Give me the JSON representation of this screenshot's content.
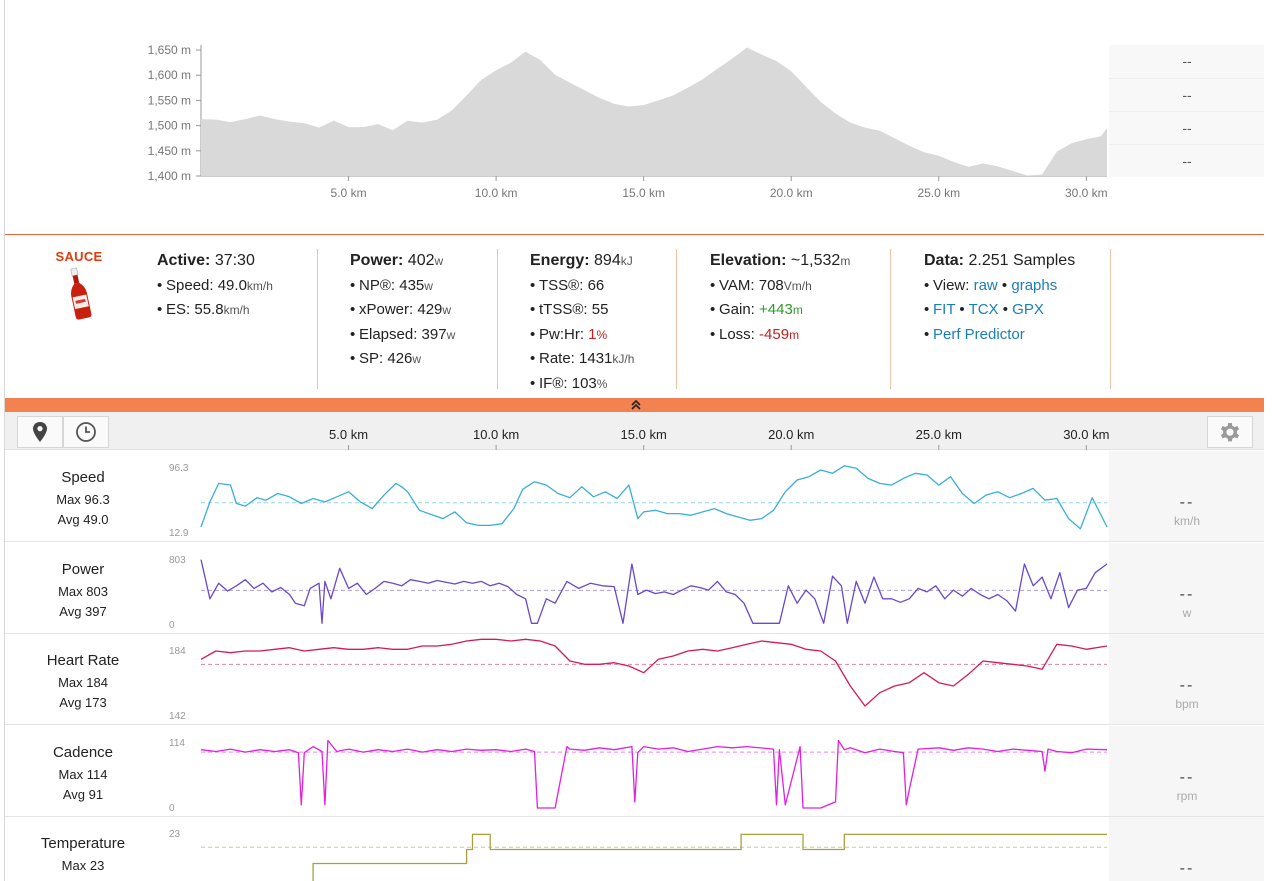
{
  "elevation": {
    "y_ticks": [
      "1,650 m",
      "1,600 m",
      "1,550 m",
      "1,500 m",
      "1,450 m",
      "1,400 m"
    ],
    "x_ticks": [
      "5.0 km",
      "10.0 km",
      "15.0 km",
      "20.0 km",
      "25.0 km",
      "30.0 km"
    ],
    "fill_color": "#d9d9d9",
    "side_values": [
      "--",
      "--",
      "--",
      "--"
    ]
  },
  "chart_data": {
    "type": "area",
    "xlabel": "",
    "ylabel": "",
    "x_unit": "km",
    "y_unit": "m",
    "xlim": [
      0,
      30.7
    ],
    "ylim": [
      1400,
      1660
    ],
    "x": [
      0,
      0.5,
      1,
      1.5,
      2,
      2.5,
      3,
      3.5,
      4,
      4.5,
      5,
      5.5,
      6,
      6.5,
      7,
      7.5,
      8,
      8.5,
      9,
      9.5,
      10,
      10.5,
      11,
      11.5,
      12,
      12.5,
      13,
      13.5,
      14,
      14.5,
      15,
      15.5,
      16,
      16.5,
      17,
      17.5,
      18,
      18.5,
      19,
      19.5,
      20,
      20.5,
      21,
      21.5,
      22,
      22.5,
      23,
      23.5,
      24,
      24.5,
      25,
      25.5,
      26,
      26.5,
      27,
      27.5,
      28,
      28.5,
      29,
      29.5,
      30,
      30.5,
      30.7
    ],
    "y": [
      1513,
      1512,
      1507,
      1513,
      1520,
      1513,
      1508,
      1505,
      1496,
      1510,
      1497,
      1497,
      1503,
      1491,
      1510,
      1506,
      1512,
      1530,
      1560,
      1591,
      1610,
      1625,
      1647,
      1630,
      1601,
      1585,
      1570,
      1555,
      1543,
      1538,
      1541,
      1550,
      1560,
      1575,
      1592,
      1613,
      1633,
      1655,
      1641,
      1628,
      1608,
      1577,
      1547,
      1524,
      1506,
      1496,
      1490,
      1475,
      1460,
      1447,
      1440,
      1428,
      1418,
      1425,
      1419,
      1410,
      1401,
      1403,
      1448,
      1465,
      1473,
      1479,
      1495
    ]
  },
  "stats": {
    "active": {
      "label": "Active:",
      "value": "37:30"
    },
    "speed": {
      "label": "Speed:",
      "value": "49.0",
      "unit": "km/h"
    },
    "es": {
      "label": "ES:",
      "value": "55.8",
      "unit": "km/h"
    },
    "power": {
      "label": "Power:",
      "value": "402",
      "unit": "w"
    },
    "np": {
      "label": "NP®:",
      "value": "435",
      "unit": "w"
    },
    "xpower": {
      "label": "xPower:",
      "value": "429",
      "unit": "w"
    },
    "elapsed": {
      "label": "Elapsed:",
      "value": "397",
      "unit": "w"
    },
    "sp": {
      "label": "SP:",
      "value": "426",
      "unit": "w"
    },
    "energy": {
      "label": "Energy:",
      "value": "894",
      "unit": "kJ"
    },
    "tss": {
      "label": "TSS®:",
      "value": "66"
    },
    "ttss": {
      "label": "tTSS®:",
      "value": "55"
    },
    "pwhr": {
      "label": "Pw:Hr:",
      "value": "1",
      "unit": "%"
    },
    "rate": {
      "label": "Rate:",
      "value": "1431",
      "unit": "kJ/h"
    },
    "if": {
      "label": "IF®:",
      "value": "103",
      "unit": "%"
    },
    "elevation": {
      "label": "Elevation:",
      "value": "~1,532",
      "unit": "m"
    },
    "vam": {
      "label": "VAM:",
      "value": "708",
      "unit": "Vm/h"
    },
    "gain": {
      "label": "Gain:",
      "value": "+443",
      "unit": "m"
    },
    "loss": {
      "label": "Loss:",
      "value": "-459",
      "unit": "m"
    },
    "data": {
      "label": "Data:",
      "value": "2.251 Samples"
    },
    "view_label": "View:",
    "link_raw": "raw",
    "link_graphs": "graphs",
    "link_fit": "FIT",
    "link_tcx": "TCX",
    "link_gpx": "GPX",
    "link_perf": "Perf Predictor"
  },
  "logo_text": "SAUCE",
  "colors": {
    "accent": "#f2824f",
    "speed": "#3aaedb",
    "power": "#6a48cc",
    "heart_rate": "#d41a5c",
    "cadence": "#e020e0",
    "temperature": "#a8a040",
    "link": "#1a7fb5"
  },
  "toolbar": {
    "map_icon": "map-pin-icon",
    "time_icon": "clock-icon",
    "settings_icon": "gear-icon",
    "x_ticks": [
      "5.0 km",
      "10.0 km",
      "15.0 km",
      "20.0 km",
      "25.0 km",
      "30.0 km"
    ]
  },
  "rows": [
    {
      "name": "Speed",
      "max": "Max 96.3",
      "avg": "Avg 49.0",
      "top": "96.3",
      "bottom": "12.9",
      "dash": "--",
      "unit": "km/h"
    },
    {
      "name": "Power",
      "max": "Max 803",
      "avg": "Avg 397",
      "top": "803",
      "bottom": "0",
      "dash": "--",
      "unit": "w"
    },
    {
      "name": "Heart Rate",
      "max": "Max 184",
      "avg": "Avg 173",
      "top": "184",
      "bottom": "142",
      "dash": "--",
      "unit": "bpm"
    },
    {
      "name": "Cadence",
      "max": "Max 114",
      "avg": "Avg 91",
      "top": "114",
      "bottom": "0",
      "dash": "--",
      "unit": "rpm"
    },
    {
      "name": "Temperature",
      "max": "Max 23",
      "avg": "",
      "top": "23",
      "bottom": "",
      "dash": "--",
      "unit": ""
    }
  ],
  "row_series": {
    "speed": {
      "min": 12.9,
      "max": 96.3,
      "avg": 49.0,
      "x": [
        0,
        0.3,
        0.6,
        1.0,
        1.2,
        1.5,
        1.9,
        2.2,
        2.6,
        3.0,
        3.4,
        3.8,
        4.2,
        4.6,
        5.0,
        5.4,
        5.8,
        6.2,
        6.6,
        6.8,
        7.0,
        7.4,
        7.8,
        8.2,
        8.6,
        9.0,
        9.4,
        9.8,
        10.2,
        10.6,
        10.9,
        11.3,
        11.7,
        12.1,
        12.5,
        12.9,
        13.3,
        13.7,
        14.1,
        14.5,
        14.8,
        15.0,
        15.4,
        15.8,
        16.2,
        16.6,
        17.0,
        17.4,
        17.8,
        18.2,
        18.6,
        19.0,
        19.4,
        19.8,
        20.2,
        20.6,
        21.0,
        21.4,
        21.8,
        22.2,
        22.6,
        23.0,
        23.4,
        23.8,
        24.2,
        24.6,
        25.0,
        25.4,
        25.8,
        26.2,
        26.6,
        27.0,
        27.4,
        27.8,
        28.2,
        28.6,
        29.0,
        29.4,
        29.8,
        30.2,
        30.7
      ],
      "y": [
        20,
        50,
        72,
        70,
        48,
        45,
        55,
        52,
        60,
        56,
        48,
        54,
        50,
        56,
        62,
        50,
        42,
        58,
        72,
        68,
        62,
        40,
        35,
        30,
        38,
        25,
        22,
        22,
        24,
        42,
        65,
        74,
        70,
        60,
        55,
        68,
        56,
        62,
        54,
        70,
        30,
        38,
        40,
        36,
        36,
        34,
        38,
        42,
        36,
        32,
        28,
        30,
        40,
        62,
        76,
        80,
        88,
        84,
        93,
        90,
        78,
        72,
        70,
        78,
        84,
        82,
        70,
        80,
        60,
        48,
        58,
        62,
        55,
        60,
        66,
        52,
        54,
        30,
        18,
        55,
        20
      ]
    },
    "power": {
      "min": 0,
      "max": 803,
      "avg": 397,
      "x": [
        0,
        0.3,
        0.6,
        0.9,
        1.2,
        1.5,
        1.8,
        2.1,
        2.4,
        2.7,
        3.0,
        3.2,
        3.5,
        3.7,
        4.0,
        4.1,
        4.2,
        4.4,
        4.7,
        5.0,
        5.3,
        5.6,
        5.9,
        6.2,
        6.5,
        6.8,
        7.1,
        7.4,
        7.7,
        8.0,
        8.3,
        8.6,
        8.9,
        9.2,
        9.5,
        9.8,
        10.1,
        10.4,
        10.7,
        11.0,
        11.2,
        11.4,
        11.7,
        12.0,
        12.4,
        12.8,
        13.2,
        13.6,
        14.0,
        14.3,
        14.6,
        14.8,
        15.1,
        15.4,
        15.7,
        16.0,
        16.3,
        16.6,
        16.9,
        17.2,
        17.5,
        17.8,
        18.1,
        18.4,
        18.7,
        19.0,
        19.3,
        19.6,
        19.9,
        20.2,
        20.5,
        20.8,
        21.1,
        21.4,
        21.7,
        21.9,
        22.2,
        22.5,
        22.8,
        23.1,
        23.4,
        23.7,
        24.0,
        24.3,
        24.6,
        24.9,
        25.2,
        25.5,
        25.8,
        26.1,
        26.4,
        26.7,
        27.0,
        27.3,
        27.6,
        27.9,
        28.2,
        28.5,
        28.8,
        29.1,
        29.4,
        29.7,
        30.0,
        30.3,
        30.7
      ],
      "y": [
        750,
        300,
        480,
        390,
        450,
        520,
        420,
        480,
        380,
        430,
        350,
        250,
        220,
        420,
        480,
        20,
        500,
        300,
        650,
        420,
        480,
        350,
        420,
        500,
        480,
        450,
        520,
        500,
        480,
        510,
        490,
        470,
        500,
        480,
        500,
        450,
        480,
        440,
        350,
        300,
        20,
        20,
        300,
        250,
        500,
        420,
        480,
        450,
        440,
        20,
        700,
        350,
        400,
        360,
        380,
        350,
        400,
        450,
        430,
        400,
        500,
        380,
        350,
        250,
        20,
        20,
        20,
        20,
        450,
        250,
        400,
        300,
        20,
        560,
        450,
        20,
        500,
        250,
        550,
        300,
        300,
        260,
        300,
        420,
        380,
        450,
        300,
        400,
        330,
        420,
        350,
        300,
        350,
        280,
        160,
        700,
        450,
        550,
        300,
        600,
        200,
        400,
        420,
        600,
        700
      ]
    },
    "heart_rate": {
      "min": 142,
      "max": 184,
      "avg": 173,
      "x": [
        0,
        0.5,
        1.0,
        1.5,
        2.0,
        2.5,
        3.0,
        3.5,
        4.0,
        4.5,
        5.0,
        5.5,
        6.0,
        6.5,
        7.0,
        7.5,
        8.0,
        8.5,
        9.0,
        9.5,
        10.0,
        10.5,
        11.0,
        11.5,
        12.0,
        12.5,
        13.0,
        13.5,
        14.0,
        14.5,
        15.0,
        15.5,
        16.0,
        16.5,
        17.0,
        17.5,
        18.0,
        18.5,
        19.0,
        19.5,
        20.0,
        20.5,
        21.0,
        21.5,
        22.0,
        22.5,
        23.0,
        23.5,
        24.0,
        24.5,
        25.0,
        25.5,
        26.0,
        26.5,
        27.0,
        27.5,
        28.0,
        28.5,
        29.0,
        29.5,
        30.0,
        30.7
      ],
      "y": [
        176,
        181,
        180,
        181,
        181,
        182,
        183,
        181,
        182,
        183,
        182,
        182,
        183,
        182,
        182,
        184,
        184,
        185,
        187,
        188,
        188,
        187,
        188,
        187,
        184,
        175,
        173,
        173,
        174,
        172,
        168,
        176,
        178,
        181,
        182,
        181,
        183,
        185,
        187,
        186,
        185,
        182,
        181,
        175,
        160,
        148,
        156,
        160,
        162,
        168,
        162,
        160,
        167,
        175,
        174,
        173,
        172,
        170,
        185,
        184,
        182,
        184
      ]
    },
    "cadence": {
      "min": 0,
      "max": 114,
      "avg": 91,
      "x": [
        0,
        0.5,
        1.0,
        1.5,
        2.0,
        2.5,
        3.0,
        3.3,
        3.4,
        3.5,
        3.8,
        4.1,
        4.2,
        4.3,
        4.6,
        5.0,
        5.5,
        6.0,
        6.5,
        7.0,
        7.5,
        8.0,
        8.5,
        9.0,
        9.5,
        10.0,
        10.5,
        11.0,
        11.3,
        11.4,
        12.0,
        12.4,
        12.5,
        13.0,
        13.5,
        14.0,
        14.6,
        14.7,
        14.8,
        15.0,
        15.5,
        16.0,
        16.5,
        17.0,
        17.5,
        18.0,
        18.5,
        19.4,
        19.5,
        19.6,
        19.8,
        20.3,
        20.4,
        21.0,
        21.5,
        21.6,
        21.8,
        22.0,
        22.5,
        23.0,
        23.5,
        23.8,
        23.9,
        24.0,
        24.3,
        25.0,
        25.5,
        26.0,
        26.5,
        27.0,
        27.5,
        28.0,
        28.5,
        28.6,
        28.7,
        29.0,
        29.5,
        30.0,
        30.7
      ],
      "y": [
        95,
        92,
        96,
        91,
        95,
        92,
        95,
        90,
        5,
        90,
        100,
        92,
        5,
        110,
        92,
        96,
        91,
        95,
        92,
        96,
        91,
        95,
        92,
        96,
        94,
        95,
        92,
        96,
        92,
        0,
        0,
        100,
        96,
        94,
        98,
        95,
        100,
        10,
        90,
        100,
        96,
        98,
        92,
        96,
        100,
        98,
        100,
        96,
        5,
        95,
        5,
        100,
        0,
        0,
        10,
        110,
        95,
        98,
        90,
        96,
        92,
        90,
        5,
        30,
        96,
        98,
        94,
        98,
        96,
        92,
        96,
        94,
        92,
        60,
        96,
        92,
        90,
        96,
        95
      ]
    },
    "temperature": {
      "min": 17,
      "max": 23.5,
      "avg": 21.8,
      "x": [
        1.5,
        3.8,
        3.8,
        9.0,
        9.0,
        9.2,
        9.2,
        9.8,
        9.8,
        18.3,
        18.3,
        20.4,
        20.4,
        21.8,
        21.8,
        30.7
      ],
      "y": [
        17,
        17,
        20.3,
        20.3,
        21.6,
        21.6,
        23,
        23,
        21.6,
        21.6,
        23,
        23,
        21.6,
        21.6,
        23,
        23
      ]
    }
  }
}
